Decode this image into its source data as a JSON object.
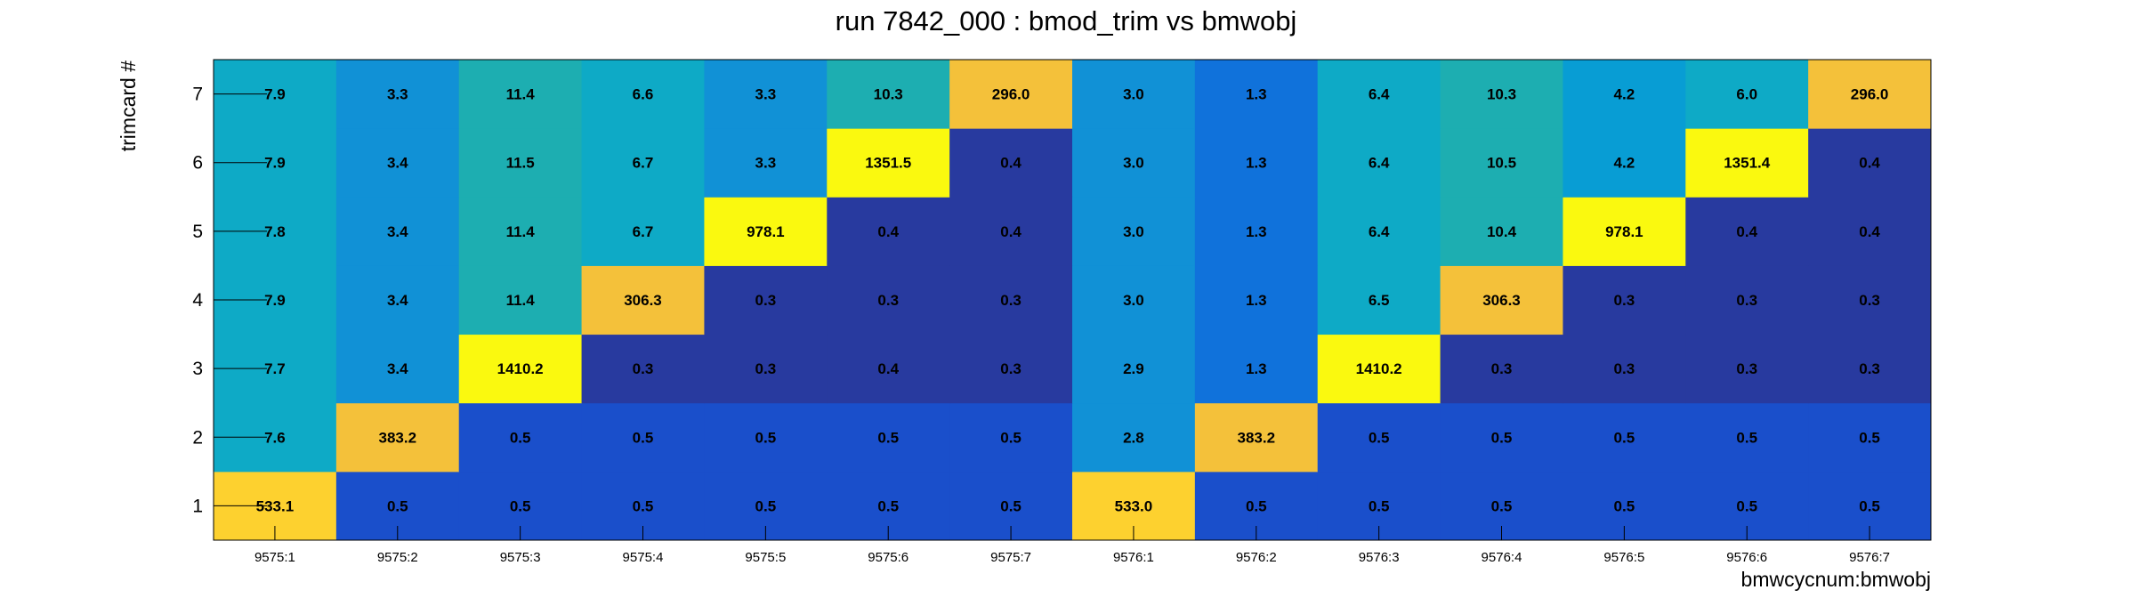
{
  "chart_data": {
    "type": "heatmap",
    "title": "run 7842_000 : bmod_trim vs bmwobj",
    "xlabel": "bmwcycnum:bmwobj",
    "ylabel": "trimcard #",
    "x_categories": [
      "9575:1",
      "9575:2",
      "9575:3",
      "9575:4",
      "9575:5",
      "9575:6",
      "9575:7",
      "9576:1",
      "9576:2",
      "9576:3",
      "9576:4",
      "9576:5",
      "9576:6",
      "9576:7"
    ],
    "y_categories": [
      "1",
      "2",
      "3",
      "4",
      "5",
      "6",
      "7"
    ],
    "values": [
      [
        "533.1",
        "0.5",
        "0.5",
        "0.5",
        "0.5",
        "0.5",
        "0.5",
        "533.0",
        "0.5",
        "0.5",
        "0.5",
        "0.5",
        "0.5",
        "0.5"
      ],
      [
        "7.6",
        "383.2",
        "0.5",
        "0.5",
        "0.5",
        "0.5",
        "0.5",
        "2.8",
        "383.2",
        "0.5",
        "0.5",
        "0.5",
        "0.5",
        "0.5"
      ],
      [
        "7.7",
        "3.4",
        "1410.2",
        "0.3",
        "0.3",
        "0.4",
        "0.3",
        "2.9",
        "1.3",
        "1410.2",
        "0.3",
        "0.3",
        "0.3",
        "0.3"
      ],
      [
        "7.9",
        "3.4",
        "11.4",
        "306.3",
        "0.3",
        "0.3",
        "0.3",
        "3.0",
        "1.3",
        "6.5",
        "306.3",
        "0.3",
        "0.3",
        "0.3"
      ],
      [
        "7.8",
        "3.4",
        "11.4",
        "6.7",
        "978.1",
        "0.4",
        "0.4",
        "3.0",
        "1.3",
        "6.4",
        "10.4",
        "978.1",
        "0.4",
        "0.4"
      ],
      [
        "7.9",
        "3.4",
        "11.5",
        "6.7",
        "3.3",
        "1351.5",
        "0.4",
        "3.0",
        "1.3",
        "6.4",
        "10.5",
        "4.2",
        "1351.4",
        "0.4"
      ],
      [
        "7.9",
        "3.3",
        "11.4",
        "6.6",
        "3.3",
        "10.3",
        "296.0",
        "3.0",
        "1.3",
        "6.4",
        "10.3",
        "4.2",
        "6.0",
        "296.0"
      ]
    ],
    "colors": [
      [
        "#fdd12f",
        "#1a4fcb",
        "#1a4fcb",
        "#1a4fcb",
        "#1a4fcb",
        "#1a4fcb",
        "#1a4fcb",
        "#fdd12f",
        "#1a4fcb",
        "#1a4fcb",
        "#1a4fcb",
        "#1a4fcb",
        "#1a4fcb",
        "#1a4fcb"
      ],
      [
        "#0eaac6",
        "#f4c13a",
        "#1a4fcb",
        "#1a4fcb",
        "#1a4fcb",
        "#1a4fcb",
        "#1a4fcb",
        "#1191d6",
        "#f4c13a",
        "#1a4fcb",
        "#1a4fcb",
        "#1a4fcb",
        "#1a4fcb",
        "#1a4fcb"
      ],
      [
        "#0eaac6",
        "#1191d6",
        "#faf90f",
        "#283a9f",
        "#283a9f",
        "#283a9f",
        "#283a9f",
        "#1191d6",
        "#1072db",
        "#faf90f",
        "#283a9f",
        "#283a9f",
        "#283a9f",
        "#283a9f"
      ],
      [
        "#0eaac6",
        "#1191d6",
        "#1daeb1",
        "#f4c13a",
        "#283a9f",
        "#283a9f",
        "#283a9f",
        "#1191d6",
        "#1072db",
        "#0eaac6",
        "#f4c13a",
        "#283a9f",
        "#283a9f",
        "#283a9f"
      ],
      [
        "#0eaac6",
        "#1191d6",
        "#1daeb1",
        "#0eaac6",
        "#faf90f",
        "#283a9f",
        "#283a9f",
        "#1191d6",
        "#1072db",
        "#0eaac6",
        "#1daeb1",
        "#faf90f",
        "#283a9f",
        "#283a9f"
      ],
      [
        "#0eaac6",
        "#1191d6",
        "#1daeb1",
        "#0eaac6",
        "#1191d6",
        "#faf90f",
        "#283a9f",
        "#1191d6",
        "#1072db",
        "#0eaac6",
        "#1daeb1",
        "#089dd4",
        "#faf90f",
        "#283a9f"
      ],
      [
        "#0eaac6",
        "#1191d6",
        "#1daeb1",
        "#0eaac6",
        "#1191d6",
        "#1daeb1",
        "#f4c13a",
        "#1191d6",
        "#1072db",
        "#0eaac6",
        "#1daeb1",
        "#089dd4",
        "#0eaac6",
        "#f4c13a"
      ]
    ]
  }
}
